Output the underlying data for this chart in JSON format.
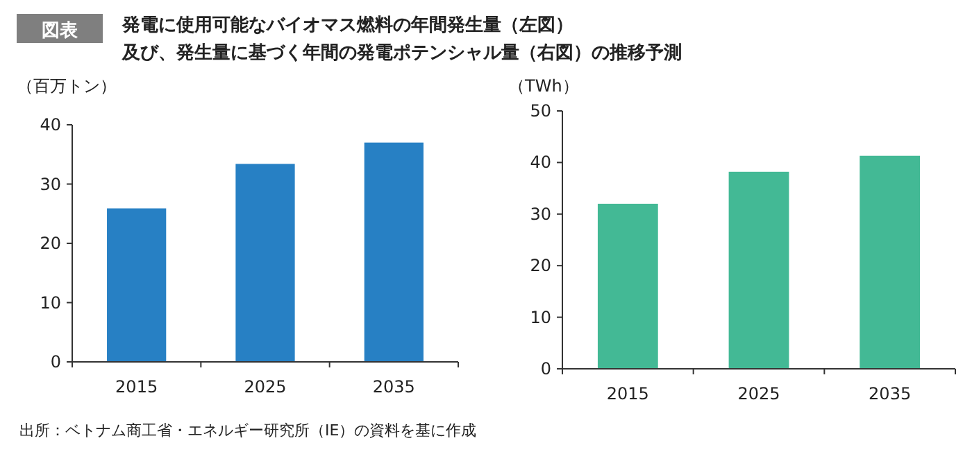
{
  "chart_data": [
    {
      "type": "bar",
      "title": "発電に使用可能なバイオマス燃料の年間発生量（左図）",
      "subtitle": "及び、発生量に基づく年間の発電ポテンシャル量（右図）の推移予測",
      "annotations": [
        "図表",
        "出所：ベトナム商工省・エネルギー研究所（IE）の資料を基に作成"
      ],
      "ylabel": "（百万トン）",
      "categories": [
        "2015",
        "2025",
        "2035"
      ],
      "values": [
        25.9,
        33.4,
        37.0
      ],
      "color": "#2780c4",
      "ylim": [
        0,
        40
      ],
      "yticks": [
        0,
        10,
        20,
        30,
        40
      ]
    },
    {
      "type": "bar",
      "ylabel": "（TWh）",
      "categories": [
        "2015",
        "2025",
        "2035"
      ],
      "values": [
        32.0,
        38.2,
        41.3
      ],
      "color": "#43b995",
      "ylim": [
        0,
        50
      ],
      "yticks": [
        0,
        10,
        20,
        30,
        40,
        50
      ]
    }
  ]
}
